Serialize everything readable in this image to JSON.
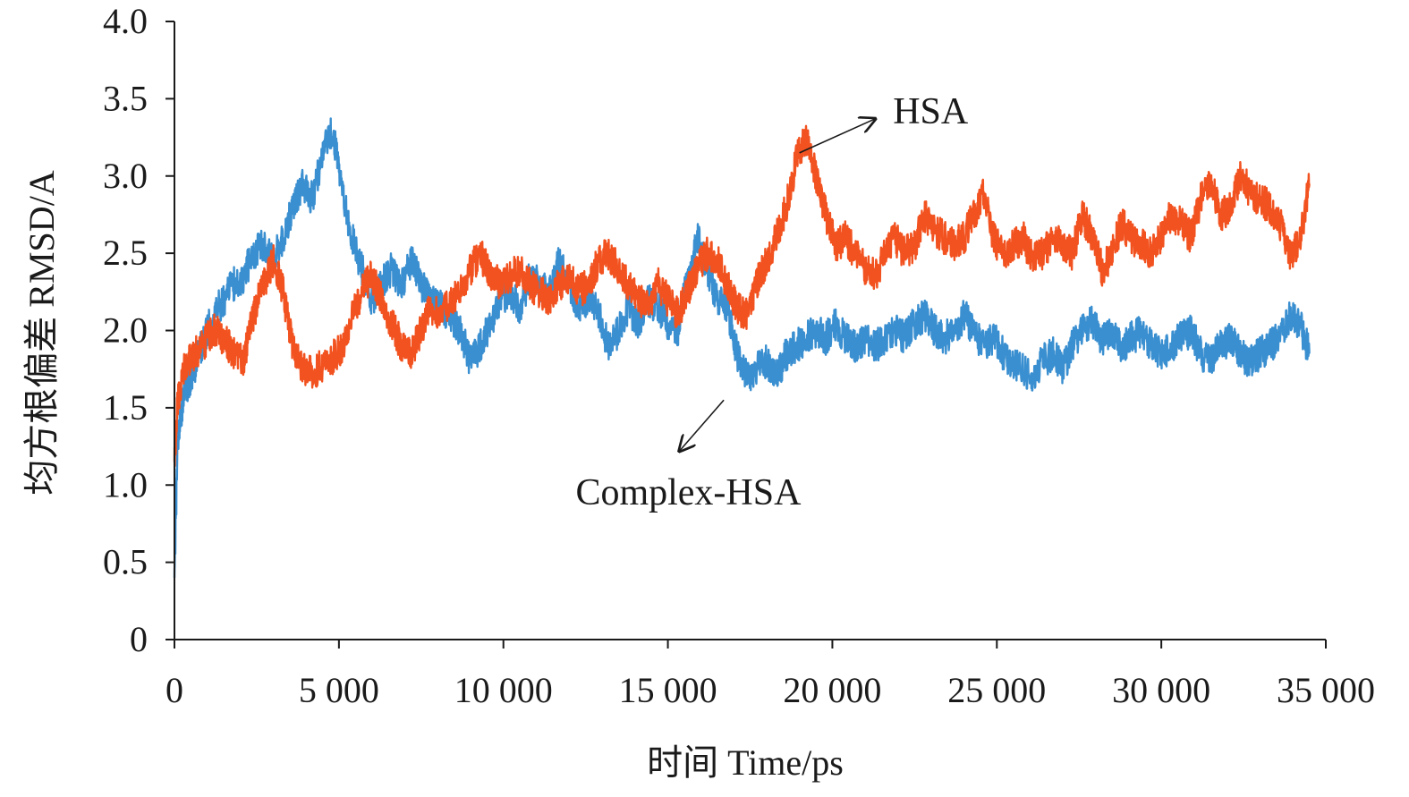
{
  "chart_data": {
    "type": "line",
    "title": "",
    "xlabel": "时间 Time/ps",
    "ylabel": "均方根偏差 RMSD/A",
    "xlim": [
      0,
      35000
    ],
    "ylim": [
      0,
      4.0
    ],
    "x_ticks": [
      0,
      5000,
      10000,
      15000,
      20000,
      25000,
      30000,
      35000
    ],
    "x_tick_labels": [
      "0",
      "5 000",
      "10 000",
      "15 000",
      "20 000",
      "25 000",
      "30 000",
      "35 000"
    ],
    "y_ticks": [
      0,
      0.5,
      1.0,
      1.5,
      2.0,
      2.5,
      3.0,
      3.5,
      4.0
    ],
    "y_tick_labels": [
      "0",
      "0.5",
      "1.0",
      "1.5",
      "2.0",
      "2.5",
      "3.0",
      "3.5",
      "4.0"
    ],
    "grid": false,
    "series": [
      {
        "name": "HSA",
        "color": "#f2521f",
        "x": [
          0,
          100,
          300,
          600,
          900,
          1200,
          1500,
          1800,
          2100,
          2400,
          2700,
          3000,
          3300,
          3600,
          3900,
          4200,
          4500,
          4800,
          5100,
          5400,
          5700,
          6000,
          6300,
          6600,
          6900,
          7200,
          7500,
          7800,
          8100,
          8400,
          8700,
          9000,
          9300,
          9600,
          9900,
          10200,
          10500,
          10800,
          11100,
          11400,
          11700,
          12000,
          12300,
          12600,
          12900,
          13200,
          13500,
          13800,
          14100,
          14400,
          14700,
          15000,
          15300,
          15600,
          15900,
          16200,
          16500,
          16800,
          17100,
          17400,
          17700,
          18000,
          18300,
          18600,
          18900,
          19200,
          19500,
          19800,
          20100,
          20400,
          20700,
          21000,
          21300,
          21600,
          21900,
          22200,
          22500,
          22800,
          23100,
          23400,
          23700,
          24000,
          24300,
          24600,
          24900,
          25200,
          25500,
          25800,
          26100,
          26400,
          26700,
          27000,
          27300,
          27600,
          27900,
          28200,
          28500,
          28800,
          29100,
          29400,
          29700,
          30000,
          30300,
          30600,
          30900,
          31200,
          31500,
          31800,
          32100,
          32400,
          32700,
          33000,
          33300,
          33600,
          33900,
          34200,
          34500
        ],
        "y": [
          1.15,
          1.55,
          1.75,
          1.85,
          1.92,
          2.0,
          1.95,
          1.85,
          1.8,
          2.1,
          2.3,
          2.45,
          2.25,
          1.9,
          1.75,
          1.72,
          1.78,
          1.82,
          1.9,
          2.1,
          2.25,
          2.35,
          2.2,
          2.05,
          1.9,
          1.85,
          2.0,
          2.15,
          2.1,
          2.2,
          2.25,
          2.4,
          2.5,
          2.35,
          2.3,
          2.35,
          2.4,
          2.3,
          2.25,
          2.2,
          2.3,
          2.35,
          2.25,
          2.3,
          2.45,
          2.5,
          2.4,
          2.3,
          2.2,
          2.15,
          2.3,
          2.2,
          2.1,
          2.25,
          2.4,
          2.5,
          2.45,
          2.3,
          2.15,
          2.1,
          2.3,
          2.45,
          2.6,
          2.8,
          3.1,
          3.25,
          3.0,
          2.75,
          2.55,
          2.6,
          2.5,
          2.4,
          2.35,
          2.5,
          2.6,
          2.5,
          2.55,
          2.75,
          2.65,
          2.6,
          2.55,
          2.6,
          2.75,
          2.9,
          2.6,
          2.5,
          2.55,
          2.6,
          2.45,
          2.5,
          2.6,
          2.55,
          2.5,
          2.75,
          2.6,
          2.4,
          2.5,
          2.7,
          2.6,
          2.55,
          2.5,
          2.6,
          2.75,
          2.7,
          2.6,
          2.85,
          2.95,
          2.75,
          2.8,
          3.0,
          2.9,
          2.85,
          2.8,
          2.7,
          2.5,
          2.55,
          2.95
        ]
      },
      {
        "name": "Complex-HSA",
        "color": "#3a8fd0",
        "x": [
          0,
          100,
          300,
          600,
          900,
          1200,
          1500,
          1800,
          2100,
          2400,
          2700,
          3000,
          3300,
          3600,
          3900,
          4200,
          4500,
          4800,
          5100,
          5400,
          5700,
          6000,
          6300,
          6600,
          6900,
          7200,
          7500,
          7800,
          8100,
          8400,
          8700,
          9000,
          9300,
          9600,
          9900,
          10200,
          10500,
          10800,
          11100,
          11400,
          11700,
          12000,
          12300,
          12600,
          12900,
          13200,
          13500,
          13800,
          14100,
          14400,
          14700,
          15000,
          15300,
          15600,
          15900,
          16200,
          16500,
          16800,
          17100,
          17400,
          17700,
          18000,
          18300,
          18600,
          18900,
          19200,
          19500,
          19800,
          20100,
          20400,
          20700,
          21000,
          21300,
          21600,
          21900,
          22200,
          22500,
          22800,
          23100,
          23400,
          23700,
          24000,
          24300,
          24600,
          24900,
          25200,
          25500,
          25800,
          26100,
          26400,
          26700,
          27000,
          27300,
          27600,
          27900,
          28200,
          28500,
          28800,
          29100,
          29400,
          29700,
          30000,
          30300,
          30600,
          30900,
          31200,
          31500,
          31800,
          32100,
          32400,
          32700,
          33000,
          33300,
          33600,
          33900,
          34200,
          34500
        ],
        "y": [
          0.4,
          1.3,
          1.6,
          1.75,
          1.95,
          2.1,
          2.2,
          2.3,
          2.35,
          2.5,
          2.55,
          2.45,
          2.6,
          2.8,
          2.95,
          2.85,
          3.15,
          3.3,
          2.9,
          2.6,
          2.4,
          2.2,
          2.3,
          2.4,
          2.3,
          2.45,
          2.3,
          2.2,
          2.15,
          2.1,
          2.0,
          1.8,
          1.9,
          2.05,
          2.2,
          2.25,
          2.15,
          2.35,
          2.3,
          2.25,
          2.45,
          2.3,
          2.15,
          2.2,
          2.1,
          1.9,
          2.0,
          2.15,
          2.05,
          2.2,
          2.15,
          2.05,
          2.0,
          2.35,
          2.6,
          2.4,
          2.2,
          2.15,
          1.85,
          1.7,
          1.75,
          1.8,
          1.7,
          1.85,
          1.9,
          1.95,
          2.0,
          1.95,
          2.05,
          1.95,
          1.9,
          1.95,
          1.9,
          1.95,
          2.0,
          1.95,
          2.05,
          2.1,
          2.0,
          1.95,
          2.0,
          2.1,
          2.0,
          1.9,
          1.95,
          1.85,
          1.8,
          1.75,
          1.7,
          1.8,
          1.85,
          1.75,
          1.9,
          2.0,
          2.05,
          1.95,
          2.0,
          1.9,
          1.95,
          2.0,
          1.9,
          1.85,
          1.9,
          1.95,
          2.0,
          1.85,
          1.8,
          1.9,
          1.95,
          1.85,
          1.8,
          1.85,
          1.9,
          1.95,
          2.1,
          2.05,
          1.85
        ]
      }
    ],
    "annotations": [
      {
        "text": "HSA",
        "series": "HSA",
        "arrow_from_x": 19000,
        "arrow_from_y": 3.15,
        "arrow_to_x": 21300,
        "arrow_to_y": 3.37
      },
      {
        "text": "Complex-HSA",
        "series": "Complex-HSA",
        "arrow_from_x": 16700,
        "arrow_from_y": 1.55,
        "arrow_to_x": 15350,
        "arrow_to_y": 1.22
      }
    ]
  }
}
